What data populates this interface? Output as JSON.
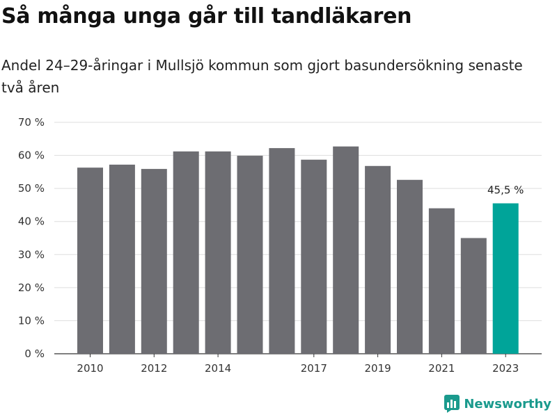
{
  "title": "Så många unga går till tandläkaren",
  "subtitle": "Andel 24–29-åringar i Mullsjö kommun som gjort basundersökning senaste två åren",
  "brand": "Newsworthy",
  "colors": {
    "bar": "#6d6d72",
    "highlight": "#00a499",
    "grid": "#dddddd",
    "brand": "#1a9a8d"
  },
  "chart_data": {
    "type": "bar",
    "categories": [
      "2010",
      "2011",
      "2012",
      "2013",
      "2014",
      "2015",
      "2016",
      "2017",
      "2018",
      "2019",
      "2020",
      "2021",
      "2022",
      "2023"
    ],
    "values": [
      56.3,
      57.2,
      55.9,
      61.2,
      61.2,
      59.9,
      62.2,
      58.7,
      62.7,
      56.8,
      52.6,
      44.0,
      35.0,
      45.5
    ],
    "x_tick_labels": [
      "2010",
      "",
      "2012",
      "",
      "2014",
      "",
      "",
      "2017",
      "",
      "2019",
      "",
      "2021",
      "",
      "2023"
    ],
    "ylim": [
      0,
      70
    ],
    "y_ticks": [
      0,
      10,
      20,
      30,
      40,
      50,
      60,
      70
    ],
    "y_tick_labels": [
      "0 %",
      "10 %",
      "20 %",
      "30 %",
      "40 %",
      "50 %",
      "60 %",
      "70 %"
    ],
    "highlight_index": 13,
    "annotation": "45,5 %",
    "grid": true,
    "xlabel": "",
    "ylabel": ""
  }
}
